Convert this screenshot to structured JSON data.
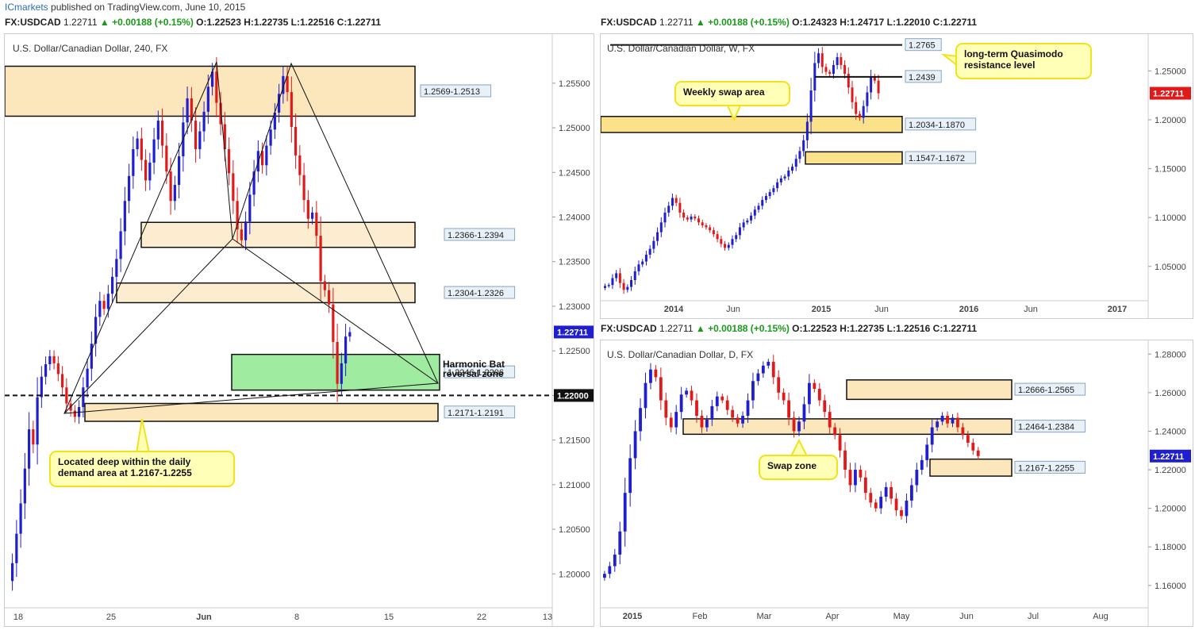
{
  "header": {
    "publisher": "ICmarkets",
    "published_text": "published on TradingView.com, June 10, 2015"
  },
  "panels": {
    "h4": {
      "symbol": "FX:USDCAD",
      "last": "1.22711",
      "change": "▲ +0.00188 (+0.15%)",
      "o": "O:1.22523",
      "h": "H:1.22735",
      "l": "L:1.22516",
      "c": "C:1.22711",
      "title": "U.S. Dollar/Canadian Dollar, 240, FX"
    },
    "weekly": {
      "symbol": "FX:USDCAD",
      "last": "1.22711",
      "change": "▲ +0.00188 (+0.15%)",
      "o": "O:1.24323",
      "h": "H:1.24717",
      "l": "L:1.22010",
      "c": "C:1.22711",
      "title": "U.S. Dollar/Canadian Dollar, W, FX"
    },
    "daily": {
      "symbol": "FX:USDCAD",
      "last": "1.22711",
      "change": "▲ +0.00188 (+0.15%)",
      "o": "O:1.22523",
      "h": "H:1.22735",
      "l": "L:1.22516",
      "c": "C:1.22711",
      "title": "U.S. Dollar/Canadian Dollar, D, FX"
    }
  },
  "chart_data": [
    {
      "id": "h4",
      "type": "candlestick",
      "title": "U.S. Dollar/Canadian Dollar, 240, FX",
      "x_ticks": [
        "18",
        "25",
        "Jun",
        "8",
        "15",
        "22",
        "13"
      ],
      "y_ticks": [
        "1.25500",
        "1.25000",
        "1.24500",
        "1.24000",
        "1.23500",
        "1.23000",
        "1.22500",
        "1.22000",
        "1.21500",
        "1.21000",
        "1.20500",
        "1.20000"
      ],
      "ylim": [
        1.1962,
        1.2605
      ],
      "last_price": "1.22711",
      "level_line": {
        "value": 1.22,
        "label": "1.22000"
      },
      "zones": [
        {
          "label": "1.2569-1.2513",
          "low": 1.2513,
          "high": 1.2569
        },
        {
          "label": "1.2366-1.2394",
          "low": 1.2366,
          "high": 1.2394
        },
        {
          "label": "1.2304-1.2326",
          "low": 1.2304,
          "high": 1.2326
        },
        {
          "label": "1.2246-1.2206",
          "low": 1.2206,
          "high": 1.2246
        },
        {
          "label": "1.2171-1.2191",
          "low": 1.2171,
          "high": 1.2191
        }
      ],
      "annotations": [
        "Harmonic Bat",
        "reversal zone",
        "Located deep within the daily",
        "demand area at 1.2167-1.2255"
      ],
      "close_path": [
        1.2012,
        1.2045,
        1.2079,
        1.2118,
        1.2162,
        1.2145,
        1.2198,
        1.2221,
        1.2235,
        1.2244,
        1.2236,
        1.2224,
        1.2209,
        1.2191,
        1.2183,
        1.2176,
        1.2187,
        1.2209,
        1.223,
        1.2258,
        1.2288,
        1.2306,
        1.2297,
        1.2314,
        1.2333,
        1.2353,
        1.2384,
        1.2418,
        1.2446,
        1.2476,
        1.2488,
        1.2464,
        1.2441,
        1.2461,
        1.2487,
        1.2508,
        1.248,
        1.2451,
        1.2418,
        1.2436,
        1.2468,
        1.2506,
        1.2533,
        1.2508,
        1.2476,
        1.2496,
        1.2518,
        1.2546,
        1.2563,
        1.2528,
        1.2504,
        1.2476,
        1.2449,
        1.2418,
        1.2386,
        1.2374,
        1.2395,
        1.2425,
        1.2451,
        1.2474,
        1.2458,
        1.248,
        1.2498,
        1.2517,
        1.2538,
        1.2558,
        1.254,
        1.2501,
        1.2469,
        1.2447,
        1.2419,
        1.2398,
        1.2405,
        1.2379,
        1.2328,
        1.2318,
        1.2302,
        1.226,
        1.2213,
        1.2236,
        1.2266,
        1.2271
      ]
    },
    {
      "id": "weekly",
      "type": "candlestick",
      "title": "U.S. Dollar/Canadian Dollar, W, FX",
      "x_ticks": [
        "2014",
        "Jun",
        "2015",
        "Jun",
        "2016",
        "Jun",
        "2017"
      ],
      "y_ticks": [
        "1.25000",
        "1.20000",
        "1.15000",
        "1.10000",
        "1.05000"
      ],
      "ylim": [
        1.0149,
        1.2876
      ],
      "last_price": "1.22711",
      "levels": [
        {
          "label": "1.2765",
          "value": 1.2765
        },
        {
          "label": "1.2439",
          "value": 1.2439
        }
      ],
      "zones": [
        {
          "label": "1.2034-1.1870",
          "low": 1.187,
          "high": 1.2034
        },
        {
          "label": "1.1547-1.1672",
          "low": 1.1547,
          "high": 1.1672
        }
      ],
      "annotations": [
        "long-term Quasimodo",
        "resistance level",
        "Weekly swap area"
      ],
      "close_path": [
        1.03,
        1.031,
        1.038,
        1.043,
        1.033,
        1.026,
        1.029,
        1.036,
        1.045,
        1.052,
        1.055,
        1.062,
        1.068,
        1.076,
        1.085,
        1.095,
        1.105,
        1.112,
        1.12,
        1.115,
        1.105,
        1.1,
        1.098,
        1.101,
        1.099,
        1.095,
        1.092,
        1.09,
        1.087,
        1.083,
        1.078,
        1.073,
        1.069,
        1.072,
        1.078,
        1.082,
        1.09,
        1.095,
        1.097,
        1.102,
        1.108,
        1.112,
        1.118,
        1.122,
        1.126,
        1.13,
        1.136,
        1.14,
        1.142,
        1.148,
        1.152,
        1.16,
        1.168,
        1.179,
        1.198,
        1.23,
        1.258,
        1.268,
        1.254,
        1.249,
        1.247,
        1.256,
        1.264,
        1.256,
        1.247,
        1.233,
        1.218,
        1.206,
        1.202,
        1.214,
        1.228,
        1.244,
        1.24,
        1.2271
      ]
    },
    {
      "id": "daily",
      "type": "candlestick",
      "title": "U.S. Dollar/Canadian Dollar, D, FX",
      "x_ticks": [
        "2015",
        "Feb",
        "Mar",
        "Apr",
        "May",
        "Jun",
        "Jul",
        "Aug"
      ],
      "y_ticks": [
        "1.28000",
        "1.26000",
        "1.24000",
        "1.22000",
        "1.20000",
        "1.18000",
        "1.16000"
      ],
      "ylim": [
        1.1484,
        1.2871
      ],
      "last_price": "1.22711",
      "zones": [
        {
          "label": "1.2666-1.2565",
          "low": 1.2565,
          "high": 1.2666
        },
        {
          "label": "1.2464-1.2384",
          "low": 1.2384,
          "high": 1.2464
        },
        {
          "label": "1.2167-1.2255",
          "low": 1.2167,
          "high": 1.2255
        }
      ],
      "annotations": [
        "Swap zone"
      ],
      "close_path": [
        1.166,
        1.17,
        1.176,
        1.188,
        1.208,
        1.226,
        1.24,
        1.252,
        1.265,
        1.272,
        1.268,
        1.256,
        1.247,
        1.242,
        1.25,
        1.259,
        1.261,
        1.256,
        1.248,
        1.242,
        1.246,
        1.253,
        1.258,
        1.256,
        1.251,
        1.247,
        1.244,
        1.248,
        1.256,
        1.266,
        1.27,
        1.274,
        1.276,
        1.268,
        1.26,
        1.256,
        1.247,
        1.24,
        1.245,
        1.254,
        1.265,
        1.262,
        1.256,
        1.25,
        1.242,
        1.238,
        1.23,
        1.22,
        1.212,
        1.22,
        1.216,
        1.208,
        1.203,
        1.2,
        1.206,
        1.211,
        1.205,
        1.199,
        1.196,
        1.204,
        1.212,
        1.22,
        1.225,
        1.233,
        1.242,
        1.245,
        1.248,
        1.244,
        1.247,
        1.242,
        1.238,
        1.234,
        1.23,
        1.2271
      ]
    }
  ]
}
